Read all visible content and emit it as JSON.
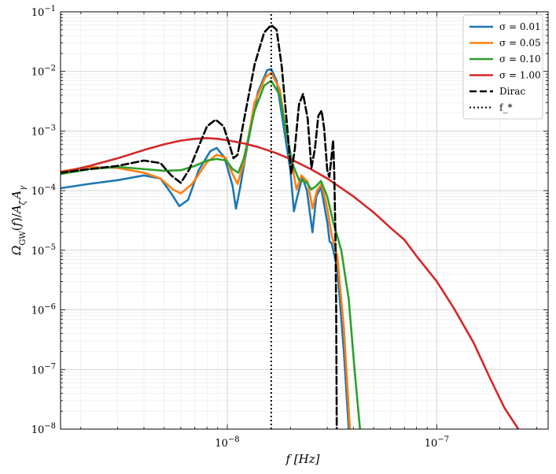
{
  "chart_data": {
    "type": "line",
    "xlabel": "f [Hz]",
    "ylabel": "Ω_GW(f)/A_ζ A_γ",
    "xscale": "log",
    "yscale": "log",
    "xlim": [
      1.6e-09,
      3.4e-07
    ],
    "ylim": [
      1e-08,
      0.1
    ],
    "grid": true,
    "legend_position": "top-right",
    "x_tick_labels": [
      {
        "value": 1e-08,
        "mantissa": "10",
        "exp": "−8"
      },
      {
        "value": 1e-07,
        "mantissa": "10",
        "exp": "−7"
      }
    ],
    "y_tick_labels": [
      {
        "value": 1e-08,
        "mantissa": "10",
        "exp": "−8"
      },
      {
        "value": 1e-07,
        "mantissa": "10",
        "exp": "−7"
      },
      {
        "value": 1e-06,
        "mantissa": "10",
        "exp": "−6"
      },
      {
        "value": 1e-05,
        "mantissa": "10",
        "exp": "−5"
      },
      {
        "value": 0.0001,
        "mantissa": "10",
        "exp": "−4"
      },
      {
        "value": 0.001,
        "mantissa": "10",
        "exp": "−3"
      },
      {
        "value": 0.01,
        "mantissa": "10",
        "exp": "−2"
      },
      {
        "value": 0.1,
        "mantissa": "10",
        "exp": "−1"
      }
    ],
    "series": [
      {
        "name": "σ = 0.01",
        "color": "#1f77b4",
        "style": "solid",
        "points": [
          [
            1.6e-09,
            0.00011
          ],
          [
            2.2e-09,
            0.00013
          ],
          [
            3e-09,
            0.00015
          ],
          [
            4e-09,
            0.00018
          ],
          [
            4.8e-09,
            0.00016
          ],
          [
            5.4e-09,
            9e-05
          ],
          [
            5.9e-09,
            5.5e-05
          ],
          [
            6.5e-09,
            7e-05
          ],
          [
            7.3e-09,
            0.00022
          ],
          [
            8.3e-09,
            0.00046
          ],
          [
            8.9e-09,
            0.00052
          ],
          [
            9.7e-09,
            0.00036
          ],
          [
            1.06e-08,
            0.00012
          ],
          [
            1.1e-08,
            5e-05
          ],
          [
            1.15e-08,
            0.00011
          ],
          [
            1.25e-08,
            0.0006
          ],
          [
            1.4e-08,
            0.0045
          ],
          [
            1.55e-08,
            0.0105
          ],
          [
            1.62e-08,
            0.011
          ],
          [
            1.72e-08,
            0.007
          ],
          [
            1.85e-08,
            0.0013
          ],
          [
            2e-08,
            0.00022
          ],
          [
            2.08e-08,
            4.5e-05
          ],
          [
            2.14e-08,
            7e-05
          ],
          [
            2.28e-08,
            0.00017
          ],
          [
            2.4e-08,
            0.0001
          ],
          [
            2.55e-08,
            2e-05
          ],
          [
            2.66e-08,
            8e-05
          ],
          [
            2.8e-08,
            0.000115
          ],
          [
            3e-08,
            3e-05
          ],
          [
            3.08e-08,
            1.4e-05
          ],
          [
            3.15e-08,
            1.3e-05
          ],
          [
            3.35e-08,
            5e-06
          ],
          [
            3.6e-08,
            2e-07
          ],
          [
            3.8e-08,
            1e-08
          ]
        ]
      },
      {
        "name": "σ = 0.05",
        "color": "#ff7f0e",
        "style": "solid",
        "points": [
          [
            1.6e-09,
            0.00021
          ],
          [
            2.2e-09,
            0.00025
          ],
          [
            3e-09,
            0.00024
          ],
          [
            4e-09,
            0.0002
          ],
          [
            4.8e-09,
            0.00016
          ],
          [
            5.5e-09,
            0.000105
          ],
          [
            6e-09,
            9e-05
          ],
          [
            6.8e-09,
            0.00013
          ],
          [
            8e-09,
            0.0003
          ],
          [
            8.9e-09,
            0.0004
          ],
          [
            9.8e-09,
            0.00036
          ],
          [
            1.06e-08,
            0.00019
          ],
          [
            1.12e-08,
            0.00013
          ],
          [
            1.2e-08,
            0.0003
          ],
          [
            1.35e-08,
            0.003
          ],
          [
            1.52e-08,
            0.008
          ],
          [
            1.62e-08,
            0.0095
          ],
          [
            1.78e-08,
            0.005
          ],
          [
            1.9e-08,
            0.0011
          ],
          [
            2.02e-08,
            0.00032
          ],
          [
            2.14e-08,
            0.000105
          ],
          [
            2.26e-08,
            0.00018
          ],
          [
            2.42e-08,
            0.00014
          ],
          [
            2.55e-08,
            5e-05
          ],
          [
            2.68e-08,
            0.0001
          ],
          [
            2.82e-08,
            0.00013
          ],
          [
            3e-08,
            5e-05
          ],
          [
            3.15e-08,
            1.8e-05
          ],
          [
            3.35e-08,
            8e-06
          ],
          [
            3.6e-08,
            5e-07
          ],
          [
            3.85e-08,
            1e-08
          ]
        ]
      },
      {
        "name": "σ = 0.10",
        "color": "#2ca02c",
        "style": "solid",
        "points": [
          [
            1.6e-09,
            0.00019
          ],
          [
            2.2e-09,
            0.00023
          ],
          [
            3e-09,
            0.00025
          ],
          [
            4e-09,
            0.00023
          ],
          [
            5e-09,
            0.000215
          ],
          [
            6e-09,
            0.00022
          ],
          [
            7e-09,
            0.00026
          ],
          [
            8e-09,
            0.00032
          ],
          [
            8.9e-09,
            0.00034
          ],
          [
            9.9e-09,
            0.00032
          ],
          [
            1.06e-08,
            0.00023
          ],
          [
            1.13e-08,
            0.0002
          ],
          [
            1.2e-08,
            0.00035
          ],
          [
            1.35e-08,
            0.0022
          ],
          [
            1.5e-08,
            0.0058
          ],
          [
            1.62e-08,
            0.007
          ],
          [
            1.78e-08,
            0.004
          ],
          [
            1.92e-08,
            0.0009
          ],
          [
            2.05e-08,
            0.00028
          ],
          [
            2.2e-08,
            0.00015
          ],
          [
            2.38e-08,
            0.00014
          ],
          [
            2.52e-08,
            0.000105
          ],
          [
            2.66e-08,
            0.00012
          ],
          [
            2.8e-08,
            0.000145
          ],
          [
            3e-08,
            8e-05
          ],
          [
            3.2e-08,
            3e-05
          ],
          [
            3.5e-08,
            1e-05
          ],
          [
            3.8e-08,
            1.5e-06
          ],
          [
            4.05e-08,
            1e-07
          ],
          [
            4.3e-08,
            1e-08
          ]
        ]
      },
      {
        "name": "σ = 1.00",
        "color": "#d62728",
        "style": "solid",
        "points": [
          [
            1.6e-09,
            0.0002
          ],
          [
            2.2e-09,
            0.00026
          ],
          [
            3e-09,
            0.00035
          ],
          [
            4e-09,
            0.00048
          ],
          [
            5e-09,
            0.0006
          ],
          [
            6e-09,
            0.00069
          ],
          [
            7e-09,
            0.00074
          ],
          [
            8e-09,
            0.00076
          ],
          [
            9e-09,
            0.00074
          ],
          [
            1e-08,
            0.0007
          ],
          [
            1.2e-08,
            0.00062
          ],
          [
            1.4e-08,
            0.00054
          ],
          [
            1.7e-08,
            0.00043
          ],
          [
            2e-08,
            0.00034
          ],
          [
            2.5e-08,
            0.00023
          ],
          [
            3e-08,
            0.00016
          ],
          [
            4e-08,
            8e-05
          ],
          [
            5e-08,
            4.3e-05
          ],
          [
            6e-08,
            2.4e-05
          ],
          [
            7e-08,
            1.5e-05
          ],
          [
            8e-08,
            8e-06
          ],
          [
            1e-07,
            3e-06
          ],
          [
            1.2e-07,
            1.1e-06
          ],
          [
            1.5e-07,
            2.8e-07
          ],
          [
            1.8e-07,
            7e-08
          ],
          [
            2.1e-07,
            2.3e-08
          ],
          [
            2.45e-07,
            1e-08
          ]
        ]
      },
      {
        "name": "Dirac",
        "color": "#000000",
        "style": "dashed",
        "points": [
          [
            1.6e-09,
            0.0002
          ],
          [
            2.2e-09,
            0.00023
          ],
          [
            3e-09,
            0.00026
          ],
          [
            4e-09,
            0.00032
          ],
          [
            4.8e-09,
            0.00029
          ],
          [
            5.4e-09,
            0.00018
          ],
          [
            6e-09,
            0.000135
          ],
          [
            6.6e-09,
            0.00023
          ],
          [
            7.3e-09,
            0.00055
          ],
          [
            8e-09,
            0.0012
          ],
          [
            8.8e-09,
            0.00155
          ],
          [
            9.6e-09,
            0.0012
          ],
          [
            1.03e-08,
            0.00055
          ],
          [
            1.07e-08,
            0.00035
          ],
          [
            1.12e-08,
            0.0004
          ],
          [
            1.2e-08,
            0.0015
          ],
          [
            1.35e-08,
            0.013
          ],
          [
            1.5e-08,
            0.045
          ],
          [
            1.62e-08,
            0.06
          ],
          [
            1.72e-08,
            0.05
          ],
          [
            1.82e-08,
            0.012
          ],
          [
            1.92e-08,
            0.0015
          ],
          [
            2.02e-08,
            0.00019
          ],
          [
            2.1e-08,
            0.0005
          ],
          [
            2.2e-08,
            0.0028
          ],
          [
            2.3e-08,
            0.0042
          ],
          [
            2.42e-08,
            0.0016
          ],
          [
            2.52e-08,
            0.00024
          ],
          [
            2.62e-08,
            0.0005
          ],
          [
            2.72e-08,
            0.0018
          ],
          [
            2.82e-08,
            0.0022
          ],
          [
            2.9e-08,
            0.0011
          ],
          [
            3e-08,
            0.00022
          ],
          [
            3.07e-08,
            0.00017
          ],
          [
            3.14e-08,
            0.00035
          ],
          [
            3.2e-08,
            0.0007
          ],
          [
            3.24e-08,
            0.0002
          ],
          [
            3.28e-08,
            2e-05
          ],
          [
            3.31e-08,
            1e-06
          ],
          [
            3.33e-08,
            1e-08
          ]
        ]
      },
      {
        "name": "f_*",
        "color": "#000000",
        "style": "dotted",
        "points": [
          [
            1.62e-08,
            1e-08
          ],
          [
            1.62e-08,
            0.1
          ]
        ]
      }
    ]
  }
}
